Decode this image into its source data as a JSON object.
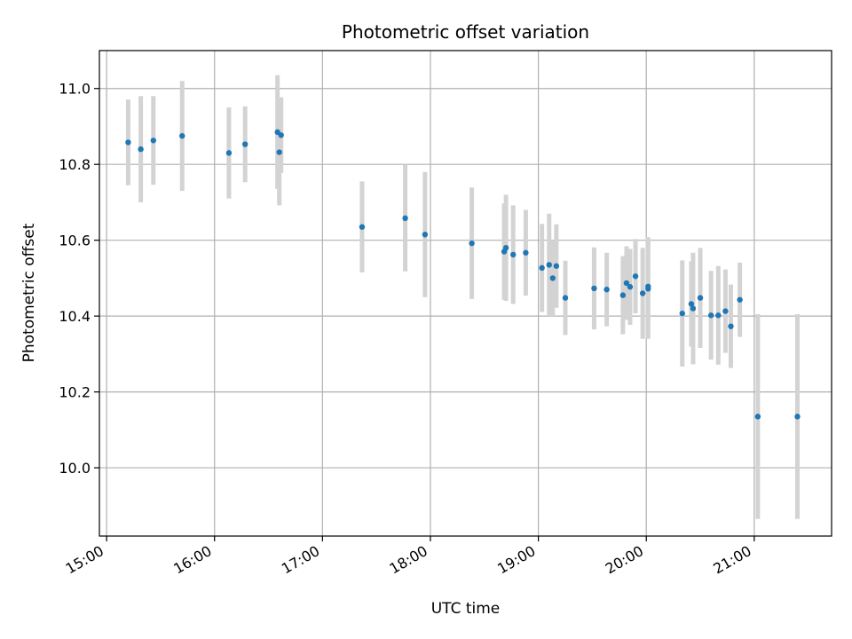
{
  "chart_data": {
    "type": "scatter",
    "title": "Photometric offset variation",
    "xlabel": "UTC time",
    "ylabel": "Photometric offset",
    "x_tick_labels": [
      "15:00",
      "16:00",
      "17:00",
      "18:00",
      "19:00",
      "20:00",
      "21:00"
    ],
    "y_tick_labels": [
      "10.0",
      "10.2",
      "10.4",
      "10.6",
      "10.8",
      "11.0"
    ],
    "x_ticks": [
      "15:00",
      "16:00",
      "17:00",
      "18:00",
      "19:00",
      "20:00",
      "21:00"
    ],
    "y_ticks": [
      10.0,
      10.2,
      10.4,
      10.6,
      10.8,
      11.0
    ],
    "xlim": [
      "14:56",
      "21:43"
    ],
    "ylim": [
      9.82,
      11.1
    ],
    "grid": true,
    "colors": {
      "points": "#1f77b4",
      "errorbars": "#d3d3d3"
    },
    "series": [
      {
        "x": [
          "15:12",
          "15:19",
          "15:26",
          "15:42",
          "16:08",
          "16:17",
          "16:35",
          "16:36",
          "16:37",
          "17:22",
          "17:46",
          "17:57",
          "18:23",
          "18:41",
          "18:42",
          "18:46",
          "18:53",
          "19:02",
          "19:06",
          "19:08",
          "19:10",
          "19:15",
          "19:31",
          "19:38",
          "19:47",
          "19:49",
          "19:51",
          "19:54",
          "19:58",
          "20:01",
          "20:01",
          "20:20",
          "20:25",
          "20:26",
          "20:30",
          "20:36",
          "20:40",
          "20:44",
          "20:47",
          "20:52",
          "21:02",
          "21:24"
        ],
        "y": [
          10.858,
          10.84,
          10.863,
          10.875,
          10.83,
          10.853,
          10.885,
          10.832,
          10.877,
          10.635,
          10.658,
          10.615,
          10.592,
          10.57,
          10.58,
          10.562,
          10.567,
          10.527,
          10.535,
          10.5,
          10.532,
          10.448,
          10.473,
          10.47,
          10.455,
          10.487,
          10.477,
          10.505,
          10.46,
          10.472,
          10.478,
          10.407,
          10.432,
          10.42,
          10.448,
          10.402,
          10.402,
          10.413,
          10.373,
          10.443,
          10.135,
          10.135
        ],
        "yerr": [
          0.113,
          0.14,
          0.117,
          0.145,
          0.12,
          0.1,
          0.15,
          0.14,
          0.1,
          0.12,
          0.14,
          0.165,
          0.147,
          0.127,
          0.14,
          0.13,
          0.113,
          0.116,
          0.135,
          0.1,
          0.11,
          0.098,
          0.108,
          0.097,
          0.103,
          0.097,
          0.1,
          0.098,
          0.12,
          0.132,
          0.13,
          0.14,
          0.112,
          0.147,
          0.132,
          0.117,
          0.13,
          0.11,
          0.11,
          0.098,
          0.27,
          0.27
        ]
      }
    ]
  }
}
